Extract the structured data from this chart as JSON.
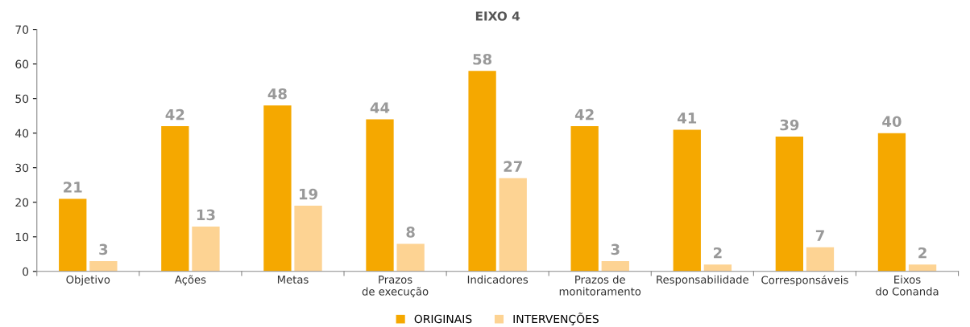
{
  "chart_data": {
    "type": "bar",
    "title": "EIXO 4",
    "categories": [
      "Objetivo",
      "Ações",
      "Metas",
      "Prazos\nde execução",
      "Indicadores",
      "Prazos de\nmonitoramento",
      "Responsabilidade",
      "Corresponsáveis",
      "Eixos\ndo Conanda"
    ],
    "series": [
      {
        "name": "ORIGINAIS",
        "color": "#f5a800",
        "values": [
          21,
          42,
          48,
          44,
          58,
          42,
          41,
          39,
          40
        ]
      },
      {
        "name": "INTERVENÇÕES",
        "color": "#fdd393",
        "values": [
          3,
          13,
          19,
          8,
          27,
          3,
          2,
          7,
          2
        ]
      }
    ],
    "ylim": [
      0,
      70
    ],
    "yticks": [
      0,
      10,
      20,
      30,
      40,
      50,
      60,
      70
    ],
    "grid": false,
    "legend": "bottom",
    "data_labels": true
  }
}
